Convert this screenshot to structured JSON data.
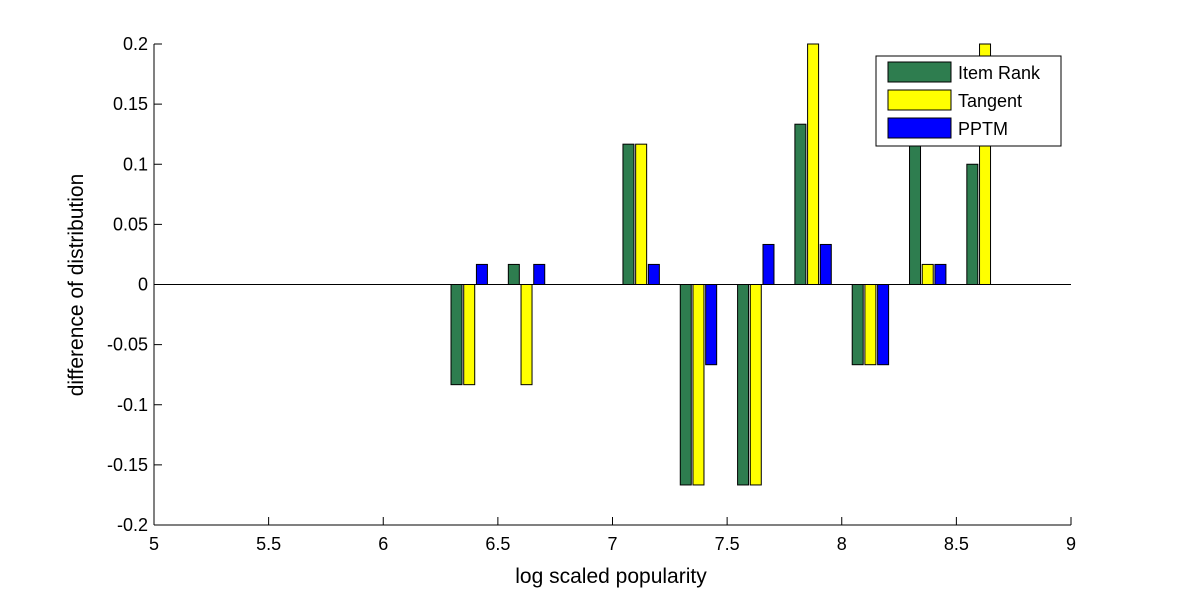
{
  "chart_data": {
    "type": "bar",
    "title": "",
    "xlabel": "log scaled popularity",
    "ylabel": "difference of distribution",
    "xlim": [
      5,
      9
    ],
    "ylim": [
      -0.2,
      0.2
    ],
    "xticks": [
      "5",
      "5.5",
      "6",
      "6.5",
      "7",
      "7.5",
      "8",
      "8.5",
      "9"
    ],
    "yticks": [
      "-0.2",
      "-0.15",
      "-0.1",
      "-0.05",
      "0",
      "0.05",
      "0.1",
      "0.15",
      "0.2"
    ],
    "grid": false,
    "legend_position": "top-right",
    "x": [
      6.375,
      6.625,
      7.125,
      7.375,
      7.625,
      7.875,
      8.125,
      8.375,
      8.625
    ],
    "series": [
      {
        "name": "Item Rank",
        "color": "#2e7d4f",
        "values": [
          -0.0833,
          0.0167,
          0.1167,
          -0.1667,
          -0.1667,
          0.1333,
          -0.0667,
          0.1167,
          0.1
        ]
      },
      {
        "name": "Tangent",
        "color": "#ffff00",
        "values": [
          -0.0833,
          -0.0833,
          0.1167,
          -0.1667,
          -0.1667,
          0.2,
          -0.0667,
          0.0167,
          0.2
        ]
      },
      {
        "name": "PPTM",
        "color": "#0000ff",
        "values": [
          0.0167,
          0.0167,
          0.0167,
          -0.0667,
          0.0333,
          0.0333,
          -0.0667,
          0.0167,
          0
        ]
      }
    ]
  }
}
